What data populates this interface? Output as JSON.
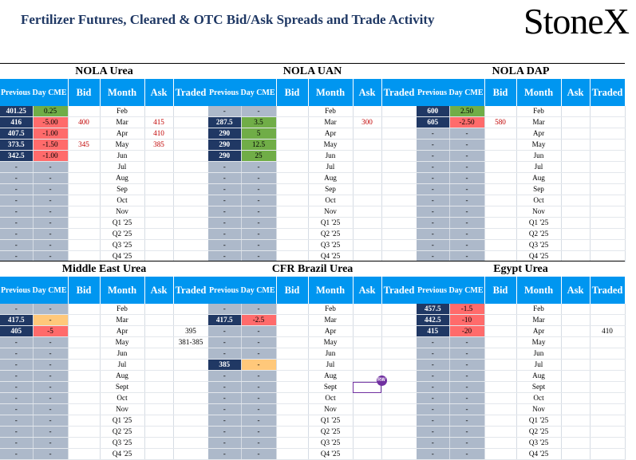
{
  "header": {
    "title": "Fertilizer Futures, Cleared & OTC Bid/Ask Spreads and Trade Activity",
    "logo": "StoneX",
    "logo_mark": "®"
  },
  "columns": [
    "Previous Day CME",
    "",
    "Bid",
    "Month",
    "Ask",
    "Traded"
  ],
  "panels": [
    {
      "title": "NOLA Urea",
      "rows": [
        {
          "prev": "401.25",
          "chg": "0.25",
          "chg_type": "pos",
          "bid": "",
          "month": "Feb",
          "ask": "",
          "traded": ""
        },
        {
          "prev": "416",
          "chg": "-5.00",
          "chg_type": "neg",
          "bid": "400",
          "month": "Mar",
          "ask": "415",
          "traded": ""
        },
        {
          "prev": "407.5",
          "chg": "-1.00",
          "chg_type": "neg",
          "bid": "",
          "month": "Apr",
          "ask": "410",
          "traded": ""
        },
        {
          "prev": "373.5",
          "chg": "-1.50",
          "chg_type": "neg",
          "bid": "345",
          "month": "May",
          "ask": "385",
          "traded": ""
        },
        {
          "prev": "342.5",
          "chg": "-1.00",
          "chg_type": "neg",
          "bid": "",
          "month": "Jun",
          "ask": "",
          "traded": ""
        },
        {
          "prev": "-",
          "chg": "-",
          "chg_type": "",
          "bid": "",
          "month": "Jul",
          "ask": "",
          "traded": ""
        },
        {
          "prev": "-",
          "chg": "-",
          "chg_type": "",
          "bid": "",
          "month": "Aug",
          "ask": "",
          "traded": ""
        },
        {
          "prev": "-",
          "chg": "-",
          "chg_type": "",
          "bid": "",
          "month": "Sep",
          "ask": "",
          "traded": ""
        },
        {
          "prev": "-",
          "chg": "-",
          "chg_type": "",
          "bid": "",
          "month": "Oct",
          "ask": "",
          "traded": ""
        },
        {
          "prev": "-",
          "chg": "-",
          "chg_type": "",
          "bid": "",
          "month": "Nov",
          "ask": "",
          "traded": ""
        },
        {
          "prev": "-",
          "chg": "-",
          "chg_type": "",
          "bid": "",
          "month": "Q1 '25",
          "ask": "",
          "traded": ""
        },
        {
          "prev": "-",
          "chg": "-",
          "chg_type": "",
          "bid": "",
          "month": "Q2 '25",
          "ask": "",
          "traded": ""
        },
        {
          "prev": "-",
          "chg": "-",
          "chg_type": "",
          "bid": "",
          "month": "Q3 '25",
          "ask": "",
          "traded": ""
        },
        {
          "prev": "-",
          "chg": "-",
          "chg_type": "",
          "bid": "",
          "month": "Q4 '25",
          "ask": "",
          "traded": ""
        }
      ]
    },
    {
      "title": "NOLA UAN",
      "rows": [
        {
          "prev": "-",
          "chg": "-",
          "chg_type": "",
          "bid": "",
          "month": "Feb",
          "ask": "",
          "traded": ""
        },
        {
          "prev": "287.5",
          "chg": "3.5",
          "chg_type": "pos",
          "bid": "",
          "month": "Mar",
          "ask": "300",
          "traded": ""
        },
        {
          "prev": "290",
          "chg": "5",
          "chg_type": "pos",
          "bid": "",
          "month": "Apr",
          "ask": "",
          "traded": ""
        },
        {
          "prev": "290",
          "chg": "12.5",
          "chg_type": "pos",
          "bid": "",
          "month": "May",
          "ask": "",
          "traded": ""
        },
        {
          "prev": "290",
          "chg": "25",
          "chg_type": "pos",
          "bid": "",
          "month": "Jun",
          "ask": "",
          "traded": ""
        },
        {
          "prev": "-",
          "chg": "-",
          "chg_type": "",
          "bid": "",
          "month": "Jul",
          "ask": "",
          "traded": ""
        },
        {
          "prev": "-",
          "chg": "-",
          "chg_type": "",
          "bid": "",
          "month": "Aug",
          "ask": "",
          "traded": ""
        },
        {
          "prev": "-",
          "chg": "-",
          "chg_type": "",
          "bid": "",
          "month": "Sep",
          "ask": "",
          "traded": ""
        },
        {
          "prev": "-",
          "chg": "-",
          "chg_type": "",
          "bid": "",
          "month": "Oct",
          "ask": "",
          "traded": ""
        },
        {
          "prev": "-",
          "chg": "-",
          "chg_type": "",
          "bid": "",
          "month": "Nov",
          "ask": "",
          "traded": ""
        },
        {
          "prev": "-",
          "chg": "-",
          "chg_type": "",
          "bid": "",
          "month": "Q1 '25",
          "ask": "",
          "traded": ""
        },
        {
          "prev": "-",
          "chg": "-",
          "chg_type": "",
          "bid": "",
          "month": "Q2 '25",
          "ask": "",
          "traded": ""
        },
        {
          "prev": "-",
          "chg": "-",
          "chg_type": "",
          "bid": "",
          "month": "Q3 '25",
          "ask": "",
          "traded": ""
        },
        {
          "prev": "-",
          "chg": "-",
          "chg_type": "",
          "bid": "",
          "month": "Q4 '25",
          "ask": "",
          "traded": ""
        }
      ]
    },
    {
      "title": "NOLA DAP",
      "rows": [
        {
          "prev": "600",
          "chg": "2.50",
          "chg_type": "pos",
          "bid": "",
          "month": "Feb",
          "ask": "",
          "traded": ""
        },
        {
          "prev": "605",
          "chg": "-2.50",
          "chg_type": "neg",
          "bid": "580",
          "month": "Mar",
          "ask": "",
          "traded": ""
        },
        {
          "prev": "-",
          "chg": "-",
          "chg_type": "",
          "bid": "",
          "month": "Apr",
          "ask": "",
          "traded": ""
        },
        {
          "prev": "-",
          "chg": "-",
          "chg_type": "",
          "bid": "",
          "month": "May",
          "ask": "",
          "traded": ""
        },
        {
          "prev": "-",
          "chg": "-",
          "chg_type": "",
          "bid": "",
          "month": "Jun",
          "ask": "",
          "traded": ""
        },
        {
          "prev": "-",
          "chg": "-",
          "chg_type": "",
          "bid": "",
          "month": "Jul",
          "ask": "",
          "traded": ""
        },
        {
          "prev": "-",
          "chg": "-",
          "chg_type": "",
          "bid": "",
          "month": "Aug",
          "ask": "",
          "traded": ""
        },
        {
          "prev": "-",
          "chg": "-",
          "chg_type": "",
          "bid": "",
          "month": "Sep",
          "ask": "",
          "traded": ""
        },
        {
          "prev": "-",
          "chg": "-",
          "chg_type": "",
          "bid": "",
          "month": "Oct",
          "ask": "",
          "traded": ""
        },
        {
          "prev": "-",
          "chg": "-",
          "chg_type": "",
          "bid": "",
          "month": "Nov",
          "ask": "",
          "traded": ""
        },
        {
          "prev": "-",
          "chg": "-",
          "chg_type": "",
          "bid": "",
          "month": "Q1 '25",
          "ask": "",
          "traded": ""
        },
        {
          "prev": "-",
          "chg": "-",
          "chg_type": "",
          "bid": "",
          "month": "Q2 '25",
          "ask": "",
          "traded": ""
        },
        {
          "prev": "-",
          "chg": "-",
          "chg_type": "",
          "bid": "",
          "month": "Q3 '25",
          "ask": "",
          "traded": ""
        },
        {
          "prev": "-",
          "chg": "-",
          "chg_type": "",
          "bid": "",
          "month": "Q4 '25",
          "ask": "",
          "traded": ""
        }
      ]
    },
    {
      "title": "Middle East Urea",
      "rows": [
        {
          "prev": "-",
          "chg": "-",
          "chg_type": "",
          "bid": "",
          "month": "Feb",
          "ask": "",
          "traded": ""
        },
        {
          "prev": "417.5",
          "chg": "-",
          "chg_type": "neu",
          "bid": "",
          "month": "Mar",
          "ask": "",
          "traded": ""
        },
        {
          "prev": "405",
          "chg": "-5",
          "chg_type": "neg",
          "bid": "",
          "month": "Apr",
          "ask": "",
          "traded": "395"
        },
        {
          "prev": "-",
          "chg": "-",
          "chg_type": "",
          "bid": "",
          "month": "May",
          "ask": "",
          "traded": "381-385"
        },
        {
          "prev": "-",
          "chg": "-",
          "chg_type": "",
          "bid": "",
          "month": "Jun",
          "ask": "",
          "traded": ""
        },
        {
          "prev": "-",
          "chg": "-",
          "chg_type": "",
          "bid": "",
          "month": "Jul",
          "ask": "",
          "traded": ""
        },
        {
          "prev": "-",
          "chg": "-",
          "chg_type": "",
          "bid": "",
          "month": "Aug",
          "ask": "",
          "traded": ""
        },
        {
          "prev": "-",
          "chg": "-",
          "chg_type": "",
          "bid": "",
          "month": "Sept",
          "ask": "",
          "traded": ""
        },
        {
          "prev": "-",
          "chg": "-",
          "chg_type": "",
          "bid": "",
          "month": "Oct",
          "ask": "",
          "traded": ""
        },
        {
          "prev": "-",
          "chg": "-",
          "chg_type": "",
          "bid": "",
          "month": "Nov",
          "ask": "",
          "traded": ""
        },
        {
          "prev": "-",
          "chg": "-",
          "chg_type": "",
          "bid": "",
          "month": "Q1 '25",
          "ask": "",
          "traded": ""
        },
        {
          "prev": "-",
          "chg": "-",
          "chg_type": "",
          "bid": "",
          "month": "Q2 '25",
          "ask": "",
          "traded": ""
        },
        {
          "prev": "-",
          "chg": "-",
          "chg_type": "",
          "bid": "",
          "month": "Q3 '25",
          "ask": "",
          "traded": ""
        },
        {
          "prev": "-",
          "chg": "-",
          "chg_type": "",
          "bid": "",
          "month": "Q4 '25",
          "ask": "",
          "traded": ""
        }
      ]
    },
    {
      "title": "CFR Brazil Urea",
      "rows": [
        {
          "prev": "-",
          "chg": "-",
          "chg_type": "",
          "bid": "",
          "month": "Feb",
          "ask": "",
          "traded": ""
        },
        {
          "prev": "417.5",
          "chg": "-2.5",
          "chg_type": "neg",
          "bid": "",
          "month": "Mar",
          "ask": "",
          "traded": ""
        },
        {
          "prev": "-",
          "chg": "-",
          "chg_type": "",
          "bid": "",
          "month": "Apr",
          "ask": "",
          "traded": ""
        },
        {
          "prev": "-",
          "chg": "-",
          "chg_type": "",
          "bid": "",
          "month": "May",
          "ask": "",
          "traded": ""
        },
        {
          "prev": "-",
          "chg": "-",
          "chg_type": "",
          "bid": "",
          "month": "Jun",
          "ask": "",
          "traded": ""
        },
        {
          "prev": "385",
          "chg": "-",
          "chg_type": "neu",
          "bid": "",
          "month": "Jul",
          "ask": "",
          "traded": ""
        },
        {
          "prev": "-",
          "chg": "-",
          "chg_type": "",
          "bid": "",
          "month": "Aug",
          "ask": "",
          "traded": ""
        },
        {
          "prev": "-",
          "chg": "-",
          "chg_type": "",
          "bid": "",
          "month": "Sept",
          "ask": "",
          "traded": "",
          "ask_outlined": true,
          "ask_badge": "RW"
        },
        {
          "prev": "-",
          "chg": "-",
          "chg_type": "",
          "bid": "",
          "month": "Oct",
          "ask": "",
          "traded": ""
        },
        {
          "prev": "-",
          "chg": "-",
          "chg_type": "",
          "bid": "",
          "month": "Nov",
          "ask": "",
          "traded": ""
        },
        {
          "prev": "-",
          "chg": "-",
          "chg_type": "",
          "bid": "",
          "month": "Q1 '25",
          "ask": "",
          "traded": ""
        },
        {
          "prev": "-",
          "chg": "-",
          "chg_type": "",
          "bid": "",
          "month": "Q2 '25",
          "ask": "",
          "traded": ""
        },
        {
          "prev": "-",
          "chg": "-",
          "chg_type": "",
          "bid": "",
          "month": "Q3 '25",
          "ask": "",
          "traded": ""
        },
        {
          "prev": "-",
          "chg": "-",
          "chg_type": "",
          "bid": "",
          "month": "Q4 '25",
          "ask": "",
          "traded": ""
        }
      ]
    },
    {
      "title": "Egypt Urea",
      "rows": [
        {
          "prev": "457.5",
          "chg": "-1.5",
          "chg_type": "neg",
          "bid": "",
          "month": "Feb",
          "ask": "",
          "traded": ""
        },
        {
          "prev": "442.5",
          "chg": "-10",
          "chg_type": "neg",
          "bid": "",
          "month": "Mar",
          "ask": "",
          "traded": ""
        },
        {
          "prev": "415",
          "chg": "-20",
          "chg_type": "neg",
          "bid": "",
          "month": "Apr",
          "ask": "",
          "traded": "410"
        },
        {
          "prev": "-",
          "chg": "-",
          "chg_type": "",
          "bid": "",
          "month": "May",
          "ask": "",
          "traded": ""
        },
        {
          "prev": "-",
          "chg": "-",
          "chg_type": "",
          "bid": "",
          "month": "Jun",
          "ask": "",
          "traded": ""
        },
        {
          "prev": "-",
          "chg": "-",
          "chg_type": "",
          "bid": "",
          "month": "Jul",
          "ask": "",
          "traded": ""
        },
        {
          "prev": "-",
          "chg": "-",
          "chg_type": "",
          "bid": "",
          "month": "Aug",
          "ask": "",
          "traded": ""
        },
        {
          "prev": "-",
          "chg": "-",
          "chg_type": "",
          "bid": "",
          "month": "Sept",
          "ask": "",
          "traded": ""
        },
        {
          "prev": "-",
          "chg": "-",
          "chg_type": "",
          "bid": "",
          "month": "Oct",
          "ask": "",
          "traded": ""
        },
        {
          "prev": "-",
          "chg": "-",
          "chg_type": "",
          "bid": "",
          "month": "Nov",
          "ask": "",
          "traded": ""
        },
        {
          "prev": "-",
          "chg": "-",
          "chg_type": "",
          "bid": "",
          "month": "Q1 '25",
          "ask": "",
          "traded": ""
        },
        {
          "prev": "-",
          "chg": "-",
          "chg_type": "",
          "bid": "",
          "month": "Q2 '25",
          "ask": "",
          "traded": ""
        },
        {
          "prev": "-",
          "chg": "-",
          "chg_type": "",
          "bid": "",
          "month": "Q3 '25",
          "ask": "",
          "traded": ""
        },
        {
          "prev": "-",
          "chg": "-",
          "chg_type": "",
          "bid": "",
          "month": "Q4 '25",
          "ask": "",
          "traded": ""
        }
      ]
    }
  ]
}
